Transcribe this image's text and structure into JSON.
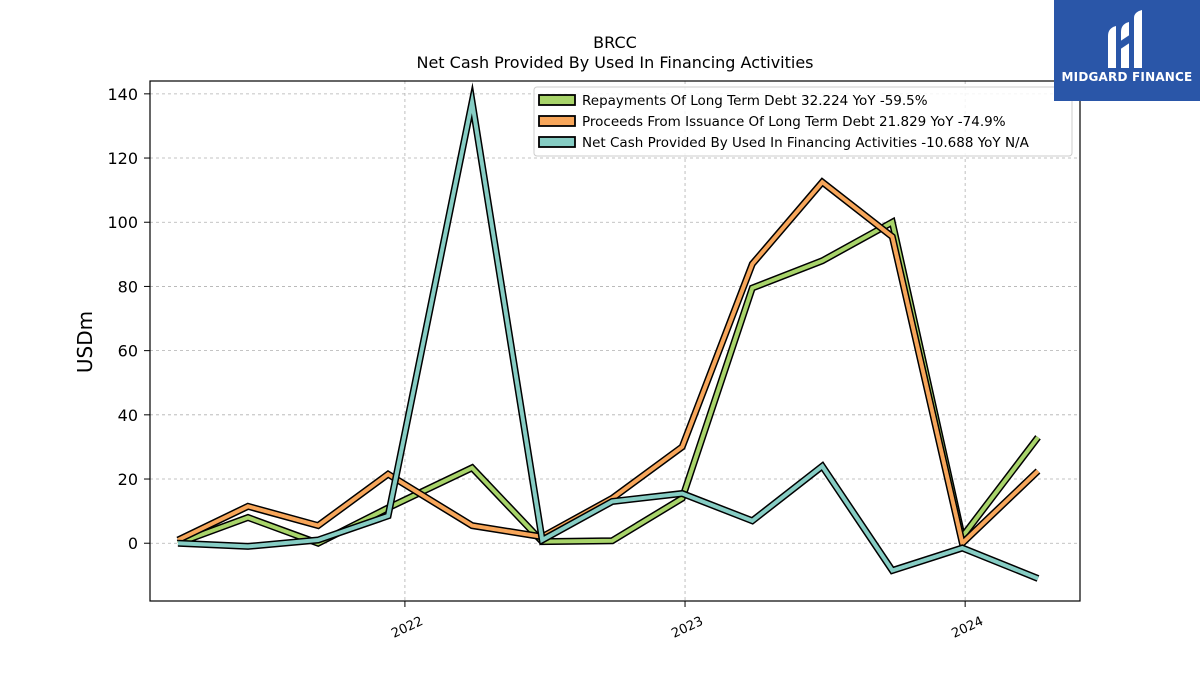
{
  "chart_data": {
    "type": "line",
    "title": "BRCC",
    "subtitle": "Net Cash Provided By Used In Financing Activities",
    "ylabel": "USDm",
    "xlabel": "",
    "ylim": [
      -18,
      144
    ],
    "xlim": [
      2021.09,
      2024.41
    ],
    "yticks": [
      0,
      20,
      40,
      60,
      80,
      100,
      120,
      140
    ],
    "xticks": [
      {
        "value": 2022.0,
        "label": "2022"
      },
      {
        "value": 2023.0,
        "label": "2023"
      },
      {
        "value": 2024.0,
        "label": "2024"
      }
    ],
    "grid": true,
    "legend_position": "top-right",
    "x": [
      2021.19,
      2021.44,
      2021.69,
      2021.94,
      2022.24,
      2022.49,
      2022.74,
      2022.99,
      2023.24,
      2023.49,
      2023.74,
      2023.99,
      2024.26
    ],
    "series": [
      {
        "name": "Repayments Of Long Term Debt  32.224 YoY -59.5%",
        "color": "#a8d46a",
        "values": [
          0.0,
          8.0,
          0.0,
          11.0,
          23.5,
          0.5,
          0.8,
          14.0,
          79.5,
          88.0,
          100.0,
          2.0,
          33.0
        ]
      },
      {
        "name": "Proceeds From Issuance Of Long Term Debt  21.829 YoY -74.9%",
        "color": "#f7a65a",
        "values": [
          1.0,
          11.5,
          5.5,
          21.5,
          5.5,
          2.0,
          14.0,
          30.0,
          87.0,
          112.5,
          95.5,
          0.0,
          22.5
        ]
      },
      {
        "name": "Net Cash Provided By Used In Financing Activities  -10.688 YoY N/A",
        "color": "#86cdc4",
        "values": [
          0.0,
          -1.0,
          1.0,
          8.5,
          137.5,
          1.0,
          13.0,
          15.5,
          7.0,
          24.0,
          -8.5,
          -1.5,
          -11.0
        ]
      }
    ]
  },
  "logo": {
    "text": "MIDGARD FINANCE",
    "color": "#2a56a8"
  }
}
